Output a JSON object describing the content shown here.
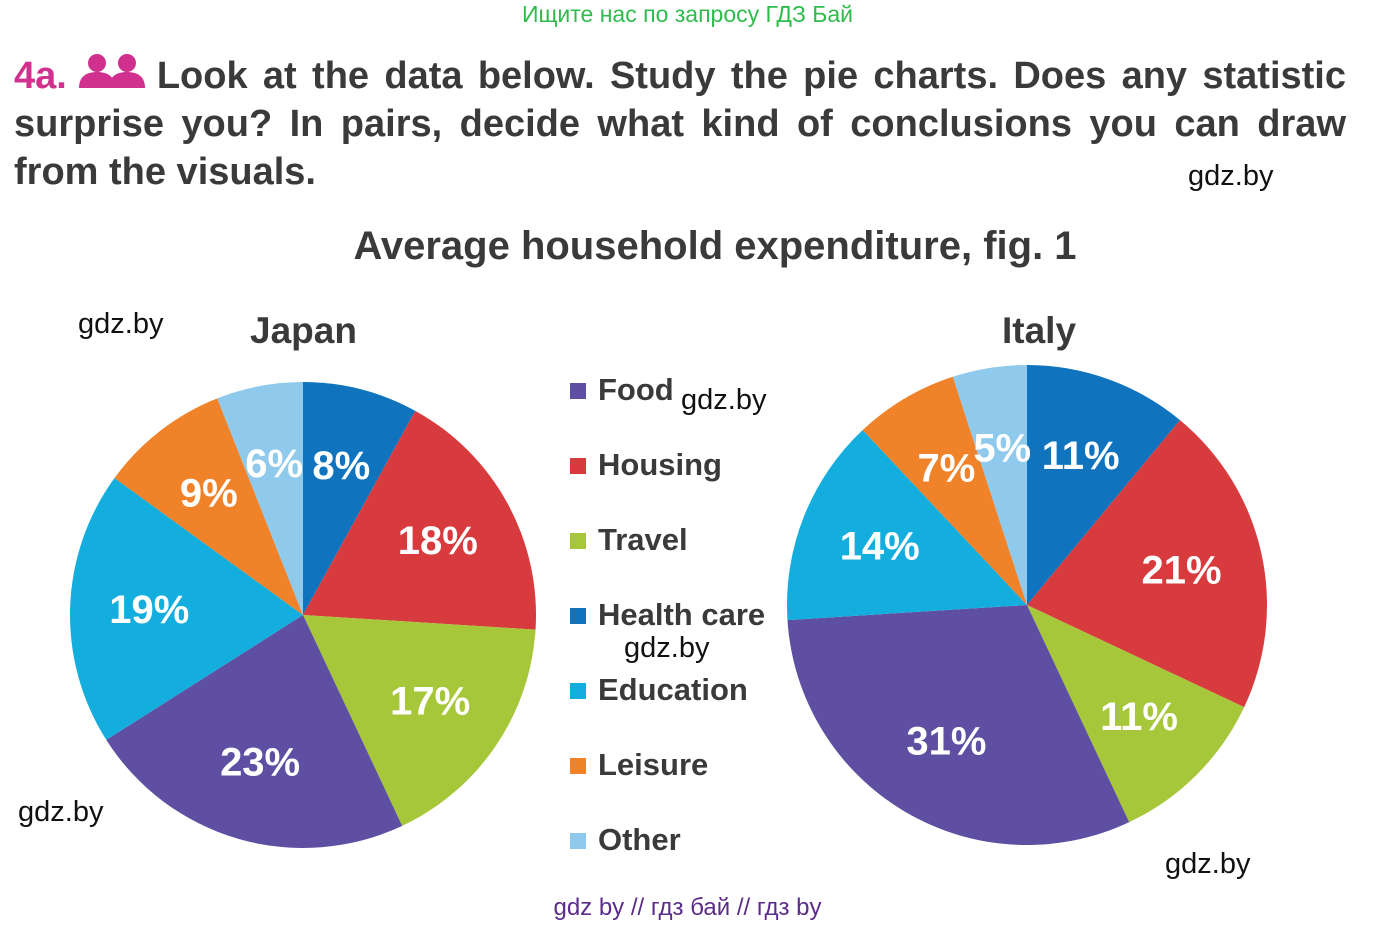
{
  "header": {
    "top_note": "Ищите нас по запросу ГДЗ Бай"
  },
  "task": {
    "number": "4a.",
    "icon": "pair-work-icon",
    "text": "Look at the data below. Study the pie charts. Does any statistic surprise you? In pairs, decide what kind of conclusions you can draw from the visuals."
  },
  "watermarks": [
    "gdz.by",
    "gdz.by",
    "gdz.by",
    "gdz.by",
    "gdz.by",
    "gdz.by"
  ],
  "footer": {
    "text": "gdz by  //  гдз бай  //  гдз by"
  },
  "colors": {
    "Food": "#5e4fa2",
    "Housing": "#d83b3d",
    "Travel": "#a7c73a",
    "Health care": "#0f74bd",
    "Education": "#13aede",
    "Leisure": "#f0822a",
    "Other": "#8fc9ec",
    "task_number": "#d0318f",
    "top_note": "#2ebd4c",
    "footer": "#5b2d8a"
  },
  "chart_data": {
    "title": "Average household expenditure, fig. 1",
    "legend": [
      "Food",
      "Housing",
      "Travel",
      "Health care",
      "Education",
      "Leisure",
      "Other"
    ],
    "legend_position": "center",
    "charts": [
      {
        "type": "pie",
        "title": "Japan",
        "slices": [
          {
            "category": "Health care",
            "value": 8,
            "label": "8%"
          },
          {
            "category": "Housing",
            "value": 18,
            "label": "18%"
          },
          {
            "category": "Travel",
            "value": 17,
            "label": "17%"
          },
          {
            "category": "Food",
            "value": 23,
            "label": "23%"
          },
          {
            "category": "Education",
            "value": 19,
            "label": "19%"
          },
          {
            "category": "Leisure",
            "value": 9,
            "label": "9%"
          },
          {
            "category": "Other",
            "value": 6,
            "label": "6%"
          }
        ]
      },
      {
        "type": "pie",
        "title": "Italy",
        "slices": [
          {
            "category": "Health care",
            "value": 11,
            "label": "11%"
          },
          {
            "category": "Housing",
            "value": 21,
            "label": "21%"
          },
          {
            "category": "Travel",
            "value": 11,
            "label": "11%"
          },
          {
            "category": "Food",
            "value": 31,
            "label": "31%"
          },
          {
            "category": "Education",
            "value": 14,
            "label": "14%"
          },
          {
            "category": "Leisure",
            "value": 7,
            "label": "7%"
          },
          {
            "category": "Other",
            "value": 5,
            "label": "5%"
          }
        ]
      }
    ]
  }
}
